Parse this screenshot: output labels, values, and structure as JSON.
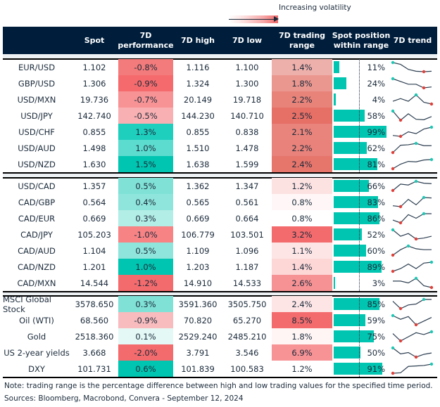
{
  "legend": {
    "label": "Increasing volatility"
  },
  "header": {
    "name": "",
    "spot": "Spot",
    "perf_line1": "7D",
    "perf_line2": "performance",
    "high": "7D high",
    "low": "7D low",
    "range_line1": "7D trading",
    "range_line2": "range",
    "pos_line1": "Spot position",
    "pos_line2": "within range",
    "trend": "7D trend"
  },
  "colors": {
    "header_bg": "#001e3c",
    "bar": "#00c5b0",
    "max_marker": "#1ec8b4",
    "min_marker": "#e0403a",
    "line": "#2c3e50"
  },
  "chart_data": {
    "type": "table",
    "groups": [
      {
        "rows": [
          {
            "name": "EUR/USD",
            "spot": "1.102",
            "perf": "-0.8%",
            "perf_color": "#f47b7b",
            "high": "1.116",
            "low": "1.100",
            "range": "1.4%",
            "range_color": "#eeb0ab",
            "position": 11,
            "trend": [
              1,
              0.8,
              0.25,
              0.05,
              0,
              0.05
            ]
          },
          {
            "name": "GBP/USD",
            "spot": "1.306",
            "perf": "-0.9%",
            "perf_color": "#f56b6d",
            "high": "1.324",
            "low": "1.300",
            "range": "1.8%",
            "range_color": "#ea978f",
            "position": 24,
            "trend": [
              1,
              0.7,
              0.4,
              0.4,
              0,
              0.1
            ]
          },
          {
            "name": "USD/MXN",
            "spot": "19.736",
            "perf": "-0.7%",
            "perf_color": "#f79395",
            "high": "20.149",
            "low": "19.718",
            "range": "2.2%",
            "range_color": "#e8837a",
            "position": 4,
            "trend": [
              0.3,
              0.6,
              0.3,
              1,
              0.2,
              0
            ]
          },
          {
            "name": "USD/JPY",
            "spot": "142.740",
            "perf": "-0.5%",
            "perf_color": "#f9b0b2",
            "high": "144.230",
            "low": "140.710",
            "range": "2.5%",
            "range_color": "#e66f66",
            "position": 58,
            "trend": [
              1,
              0,
              0.7,
              0.1,
              0.05,
              0.4
            ]
          },
          {
            "name": "USD/CHF",
            "spot": "0.855",
            "perf": "1.3%",
            "perf_color": "#1ecfbe",
            "high": "0.855",
            "low": "0.838",
            "range": "2.1%",
            "range_color": "#e8847c",
            "position": 99,
            "trend": [
              0.1,
              0,
              0.5,
              0.3,
              0.8,
              1
            ]
          },
          {
            "name": "USD/AUD",
            "spot": "1.498",
            "perf": "1.0%",
            "perf_color": "#5cdccf",
            "high": "1.510",
            "low": "1.478",
            "range": "2.2%",
            "range_color": "#e8827a",
            "position": 62,
            "trend": [
              0,
              0.8,
              0.85,
              1,
              0.75,
              0.75
            ]
          },
          {
            "name": "USD/NZD",
            "spot": "1.630",
            "perf": "1.5%",
            "perf_color": "#00c5b0",
            "high": "1.638",
            "low": "1.599",
            "range": "2.4%",
            "range_color": "#e6756c",
            "position": 81,
            "trend": [
              0,
              0.5,
              0.8,
              0.75,
              0.95,
              1
            ]
          }
        ]
      },
      {
        "rows": [
          {
            "name": "USD/CAD",
            "spot": "1.357",
            "perf": "0.5%",
            "perf_color": "#80e2d7",
            "high": "1.362",
            "low": "1.347",
            "range": "1.2%",
            "range_color": "#fde2e2",
            "position": 66,
            "trend": [
              0,
              0.7,
              0.6,
              1,
              0.8,
              0.75
            ]
          },
          {
            "name": "CAD/GBP",
            "spot": "0.564",
            "perf": "0.4%",
            "perf_color": "#8fe5db",
            "high": "0.565",
            "low": "0.561",
            "range": "0.8%",
            "range_color": "#fff7f7",
            "position": 83,
            "trend": [
              0.1,
              0,
              0.8,
              0.2,
              1,
              0.95
            ]
          },
          {
            "name": "CAD/EUR",
            "spot": "0.669",
            "perf": "0.3%",
            "perf_color": "#b2ede6",
            "high": "0.669",
            "low": "0.664",
            "range": "0.8%",
            "range_color": "#ffffff",
            "position": 86,
            "trend": [
              0.3,
              0,
              0.9,
              0.5,
              1,
              1
            ]
          },
          {
            "name": "CAD/JPY",
            "spot": "105.203",
            "perf": "-1.0%",
            "perf_color": "#f78385",
            "high": "106.779",
            "low": "103.501",
            "range": "3.2%",
            "range_color": "#f46b6d",
            "position": 52,
            "trend": [
              1,
              0.3,
              0.6,
              0,
              0.1,
              0.3
            ]
          },
          {
            "name": "CAD/AUD",
            "spot": "1.104",
            "perf": "0.5%",
            "perf_color": "#8fe5db",
            "high": "1.109",
            "low": "1.096",
            "range": "1.1%",
            "range_color": "#fde5e5",
            "position": 60,
            "trend": [
              0,
              0.6,
              1,
              0.7,
              0.6,
              0.6
            ]
          },
          {
            "name": "CAD/NZD",
            "spot": "1.201",
            "perf": "1.0%",
            "perf_color": "#00c5b0",
            "high": "1.203",
            "low": "1.187",
            "range": "1.4%",
            "range_color": "#fdd6d6",
            "position": 89,
            "trend": [
              0,
              0.3,
              0.8,
              0.3,
              0.9,
              1
            ]
          },
          {
            "name": "CAD/MXN",
            "spot": "14.544",
            "perf": "-1.2%",
            "perf_color": "#f46b6d",
            "high": "14.910",
            "low": "14.533",
            "range": "2.6%",
            "range_color": "#f79294",
            "position": 3,
            "trend": [
              0.7,
              0.7,
              0.5,
              1,
              0.2,
              0
            ]
          }
        ]
      },
      {
        "rows": [
          {
            "name": "MSCI Global Stock",
            "spot": "3578.650",
            "perf": "0.3%",
            "perf_color": "#80e2d7",
            "high": "3591.360",
            "low": "3505.750",
            "range": "2.4%",
            "range_color": "#fde5e5",
            "position": 85,
            "trend": [
              0.8,
              0,
              0.4,
              0.5,
              1,
              1
            ]
          },
          {
            "name": "Oil (WTI)",
            "spot": "68.560",
            "perf": "-0.9%",
            "perf_color": "#f8bcbe",
            "high": "70.820",
            "low": "65.270",
            "range": "8.5%",
            "range_color": "#f46b6d",
            "position": 59,
            "trend": [
              1,
              0.6,
              0.9,
              0,
              0.4,
              0.8
            ]
          },
          {
            "name": "Gold",
            "spot": "2518.360",
            "perf": "0.1%",
            "perf_color": "#e4f8f5",
            "high": "2529.240",
            "low": "2485.210",
            "range": "1.8%",
            "range_color": "#fff5f5",
            "position": 75,
            "trend": [
              0.8,
              0,
              0.45,
              0.9,
              0.7,
              1
            ]
          },
          {
            "name": "US 2-year yields",
            "spot": "3.668",
            "perf": "-2.0%",
            "perf_color": "#f46b6d",
            "high": "3.791",
            "low": "3.546",
            "range": "6.9%",
            "range_color": "#f79295",
            "position": 50,
            "trend": [
              1,
              0.35,
              0.5,
              0,
              0.3,
              0.45
            ]
          },
          {
            "name": "DXY",
            "spot": "101.731",
            "perf": "0.6%",
            "perf_color": "#00c5b0",
            "high": "101.839",
            "low": "100.583",
            "range": "1.2%",
            "range_color": "#ffffff",
            "position": 91,
            "trend": [
              0,
              0.05,
              0.75,
              0.8,
              0.85,
              1
            ]
          }
        ]
      }
    ]
  },
  "footer": {
    "note": "Note: trading range is the percentage difference between high and low trading values for the specified time period.",
    "sources": "Sources: Bloomberg, Macrobond, Convera - September 12, 2024"
  }
}
